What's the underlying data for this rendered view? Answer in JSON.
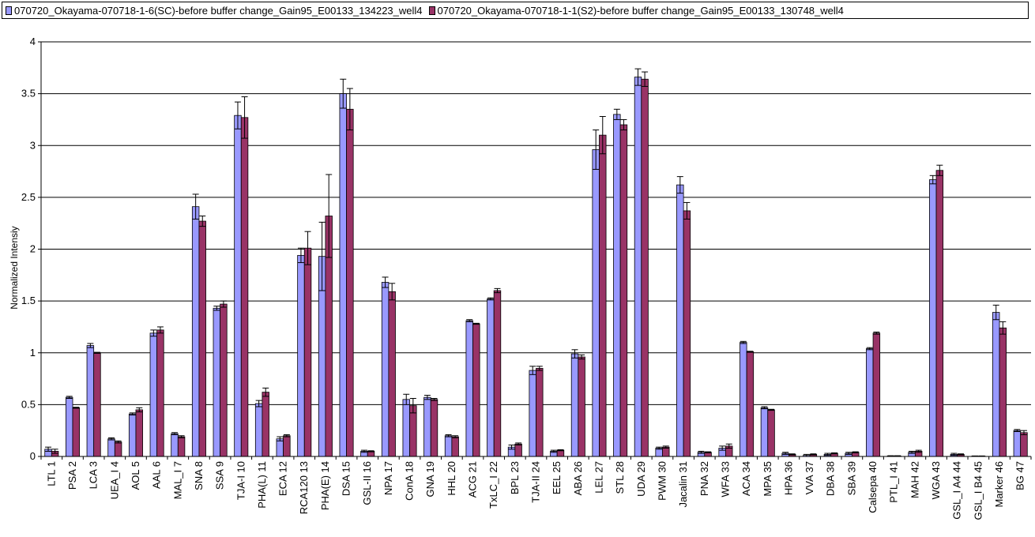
{
  "chart_data": {
    "type": "bar",
    "ylabel": "Normalized Intensiy",
    "xlabel": "",
    "ylim": [
      0,
      4
    ],
    "ytick_step": 0.5,
    "yticks": [
      "0",
      "0.5",
      "1",
      "1.5",
      "2",
      "2.5",
      "3",
      "3.5",
      "4"
    ],
    "grid": "horizontal",
    "legend_position": "top",
    "categories": [
      "LTL 1",
      "PSA 2",
      "LCA 3",
      "UEA_I 4",
      "AOL 5",
      "AAL 6",
      "MAL_I 7",
      "SNA 8",
      "SSA 9",
      "TJA-I 10",
      "PHA(L) 11",
      "ECA 12",
      "RCA120 13",
      "PHA(E) 14",
      "DSA 15",
      "GSL-II 16",
      "NPA 17",
      "ConA 18",
      "GNA 19",
      "HHL 20",
      "ACG 21",
      "TxLC_I 22",
      "BPL 23",
      "TJA-II 24",
      "EEL 25",
      "ABA 26",
      "LEL 27",
      "STL 28",
      "UDA 29",
      "PWM 30",
      "Jacalin 31",
      "PNA 32",
      "WFA 33",
      "ACA 34",
      "MPA 35",
      "HPA 36",
      "VVA 37",
      "DBA 38",
      "SBA 39",
      "Calsepa 40",
      "PTL_I 41",
      "MAH 42",
      "WGA 43",
      "GSL_I A4 44",
      "GSL_I B4 45",
      "Marker 46",
      "BG 47"
    ],
    "series": [
      {
        "name": "070720_Okayama-070718-1-6(SC)-before buffer change_Gain95_E00133_134223_well4",
        "color": "#9999ff",
        "values": [
          0.07,
          0.57,
          1.07,
          0.17,
          0.41,
          1.19,
          0.22,
          2.41,
          1.43,
          3.29,
          0.51,
          0.17,
          1.94,
          1.93,
          3.5,
          0.05,
          1.68,
          0.55,
          0.57,
          0.2,
          1.31,
          1.52,
          0.09,
          0.83,
          0.05,
          0.99,
          2.96,
          3.3,
          3.66,
          0.08,
          2.62,
          0.04,
          0.08,
          1.1,
          0.47,
          0.03,
          0.01,
          0.02,
          0.03,
          1.04,
          0.005,
          0.04,
          2.67,
          0.02,
          0.003,
          1.39,
          0.25
        ],
        "errors": [
          0.02,
          0.01,
          0.02,
          0.01,
          0.01,
          0.03,
          0.01,
          0.12,
          0.02,
          0.13,
          0.03,
          0.02,
          0.07,
          0.33,
          0.14,
          0.01,
          0.05,
          0.05,
          0.02,
          0.01,
          0.01,
          0.01,
          0.02,
          0.04,
          0.01,
          0.04,
          0.19,
          0.05,
          0.08,
          0.01,
          0.08,
          0.01,
          0.02,
          0.01,
          0.01,
          0.01,
          0.01,
          0.01,
          0.01,
          0.01,
          0.002,
          0.01,
          0.04,
          0.01,
          0.002,
          0.07,
          0.01
        ]
      },
      {
        "name": "070718-1-1(S2)-before buffer change_Gain95_E00133_130748_well4",
        "legend_label": "070720_Okayama-070718-1-1(S2)-before buffer change_Gain95_E00133_130748_well4",
        "color": "#993366",
        "values": [
          0.05,
          0.47,
          1.0,
          0.14,
          0.45,
          1.22,
          0.19,
          2.27,
          1.47,
          3.27,
          0.62,
          0.2,
          2.01,
          2.32,
          3.35,
          0.05,
          1.59,
          0.49,
          0.55,
          0.19,
          1.28,
          1.6,
          0.12,
          0.85,
          0.06,
          0.96,
          3.1,
          3.2,
          3.64,
          0.09,
          2.37,
          0.04,
          0.1,
          1.01,
          0.45,
          0.02,
          0.02,
          0.03,
          0.04,
          1.19,
          0.005,
          0.05,
          2.76,
          0.02,
          0.003,
          1.24,
          0.23
        ],
        "errors": [
          0.02,
          0.005,
          0.005,
          0.01,
          0.02,
          0.03,
          0.01,
          0.05,
          0.03,
          0.2,
          0.04,
          0.01,
          0.16,
          0.4,
          0.2,
          0.005,
          0.08,
          0.07,
          0.01,
          0.01,
          0.005,
          0.02,
          0.01,
          0.02,
          0.005,
          0.02,
          0.18,
          0.05,
          0.07,
          0.01,
          0.08,
          0.005,
          0.02,
          0.005,
          0.005,
          0.005,
          0.005,
          0.005,
          0.005,
          0.01,
          0.002,
          0.01,
          0.05,
          0.005,
          0.002,
          0.06,
          0.02
        ]
      }
    ]
  },
  "legend": {
    "label_1": "070720_Okayama-070718-1-6(SC)-before buffer change_Gain95_E00133_134223_well4",
    "label_2": "070720_Okayama-070718-1-1(S2)-before buffer change_Gain95_E00133_130748_well4"
  }
}
